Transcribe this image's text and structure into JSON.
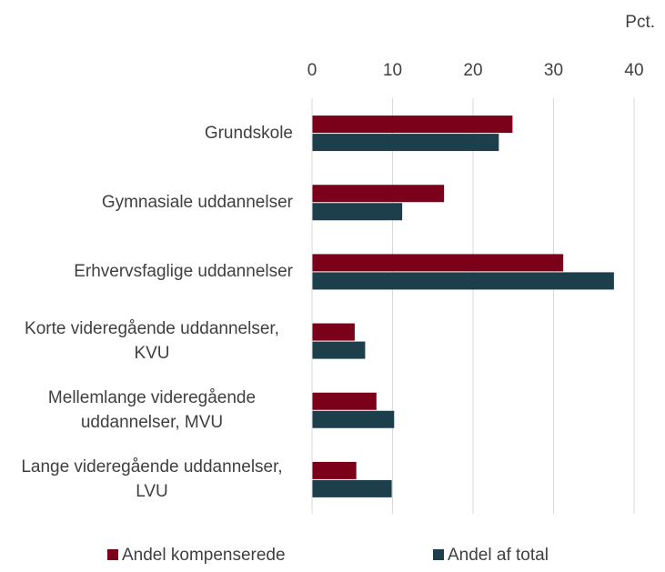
{
  "chart_data": {
    "type": "hbar",
    "unit_label": "Pct.",
    "categories": [
      "Grundskole",
      "Gymnasiale uddannelser",
      "Erhvervsfaglige uddannelser",
      "Korte videregående uddannelser, KVU",
      "Mellemlange videregående uddannelser, MVU",
      "Lange videregående uddannelser, LVU"
    ],
    "series": [
      {
        "name": "Andel kompenserede",
        "color": "#7b0019",
        "values": [
          24.9,
          16.4,
          31.2,
          5.3,
          8.0,
          5.5
        ]
      },
      {
        "name": "Andel af total",
        "color": "#1d3f4c",
        "values": [
          23.2,
          11.2,
          37.5,
          6.6,
          10.2,
          9.9
        ]
      }
    ],
    "xlim": [
      0,
      40
    ],
    "xticks": [
      0,
      10,
      20,
      30,
      40
    ],
    "grid": true,
    "legend": "bottom"
  }
}
